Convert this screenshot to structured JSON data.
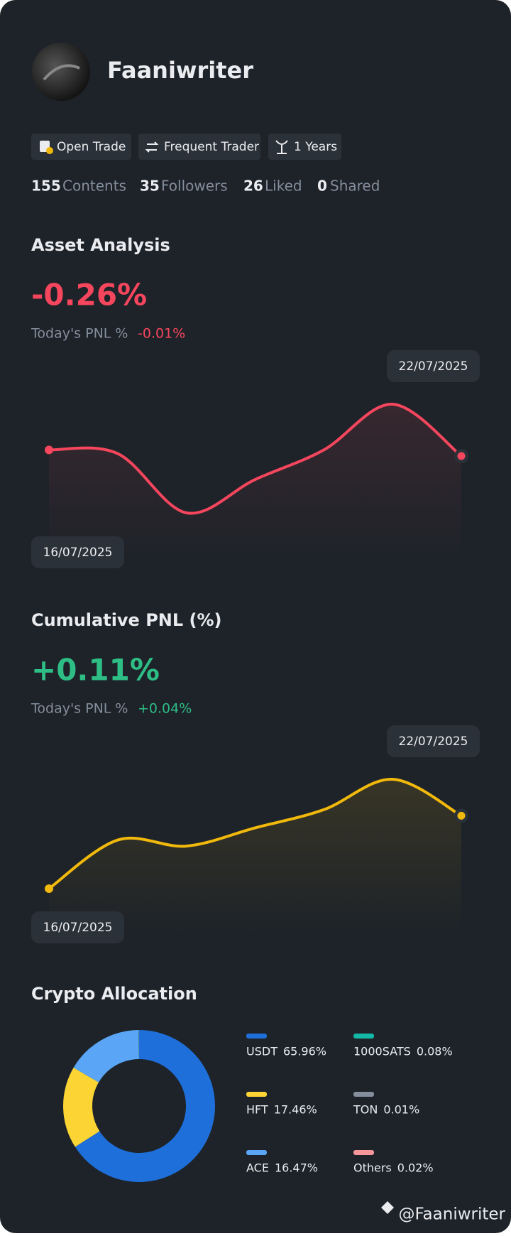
{
  "profile": {
    "name": "Faaniwriter",
    "tags": [
      "Open Trade",
      "Frequent Trader",
      "1 Years"
    ],
    "stats": [
      {
        "count": 155,
        "label": "Contents"
      },
      {
        "count": 35,
        "label": "Followers"
      },
      {
        "count": 26,
        "label": "Liked"
      },
      {
        "count": 0,
        "label": "Shared"
      }
    ]
  },
  "chart_data": [
    {
      "type": "line",
      "title": "Asset Analysis",
      "headline": "-0.26%",
      "pnl_label": "Today's PNL %",
      "pnl_value": "-0.01%",
      "categories": [
        "16/07/2025",
        null,
        null,
        null,
        null,
        null,
        "22/07/2025"
      ],
      "values": [
        0.05,
        0.02,
        -0.46,
        -0.19,
        0.05,
        0.42,
        0.0
      ],
      "color": "#f6465d"
    },
    {
      "type": "line",
      "title": "Cumulative PNL (%)",
      "headline": "+0.11%",
      "pnl_label": "Today's PNL %",
      "pnl_value": "+0.04%",
      "categories": [
        "16/07/2025",
        null,
        null,
        null,
        null,
        null,
        "22/07/2025"
      ],
      "values": [
        0.0,
        0.08,
        0.07,
        0.1,
        0.13,
        0.18,
        0.12
      ],
      "color": "#f0b90b"
    },
    {
      "type": "pie",
      "title": "Crypto Allocation",
      "categories": [
        "USDT",
        "HFT",
        "ACE",
        "1000SATS",
        "TON",
        "Others"
      ],
      "values": [
        65.96,
        17.46,
        16.47,
        0.08,
        0.01,
        0.02
      ],
      "value_labels": [
        "65.96%",
        "17.46%",
        "16.47%",
        "0.08%",
        "0.01%",
        "0.02%"
      ],
      "colors": [
        "#1e6fd9",
        "#fcd535",
        "#5aa5f5",
        "#14b8a6",
        "#848e9c",
        "#f6969b"
      ]
    }
  ],
  "watermark": "@Faaniwriter"
}
